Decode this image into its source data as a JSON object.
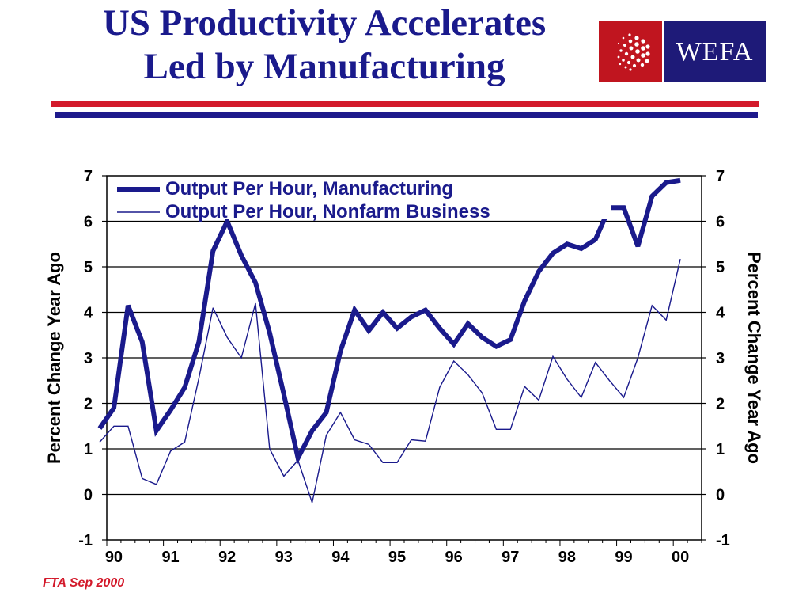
{
  "slide": {
    "title_line1": "US Productivity Accelerates",
    "title_line2": "Led by Manufacturing",
    "logo_text": "WEFA",
    "footnote": "FTA Sep 2000"
  },
  "colors": {
    "title": "#1a1a8c",
    "series": "#1a1a8c",
    "logo_red": "#c0151f",
    "logo_blue": "#1e1a78",
    "rule_red": "#d31a2b",
    "rule_blue": "#1e1a8c"
  },
  "chart_data": {
    "type": "line",
    "ylabel": "Percent Change Year Ago",
    "y2label": "Percent Change Year Ago",
    "ylim": [
      -1,
      7
    ],
    "yticks": [
      "-1",
      "0",
      "1",
      "2",
      "3",
      "4",
      "5",
      "6",
      "7"
    ],
    "xlim": [
      1990,
      2000.5
    ],
    "xticks": [
      "90",
      "91",
      "92",
      "93",
      "94",
      "95",
      "96",
      "97",
      "98",
      "99",
      "00"
    ],
    "grid": true,
    "legend_position": "top-left",
    "series": [
      {
        "name": "Output Per Hour, Manufacturing",
        "style": "thick",
        "x": [
          1989.875,
          1990.125,
          1990.375,
          1990.625,
          1990.875,
          1991.125,
          1991.375,
          1991.625,
          1991.875,
          1992.125,
          1992.375,
          1992.625,
          1992.875,
          1993.125,
          1993.375,
          1993.625,
          1993.875,
          1994.125,
          1994.375,
          1994.625,
          1994.875,
          1995.125,
          1995.375,
          1995.625,
          1995.875,
          1996.125,
          1996.375,
          1996.625,
          1996.875,
          1997.125,
          1997.375,
          1997.625,
          1997.875,
          1998.125,
          1998.375,
          1998.625,
          1998.875,
          1999.125,
          1999.375,
          1999.625,
          1999.875,
          2000.125
        ],
        "y": [
          1.45,
          1.9,
          4.15,
          3.35,
          1.4,
          1.85,
          2.35,
          3.35,
          5.35,
          6.0,
          5.25,
          4.65,
          3.55,
          2.2,
          0.8,
          1.4,
          1.8,
          3.15,
          4.05,
          3.6,
          4.0,
          3.65,
          3.9,
          4.05,
          3.65,
          3.3,
          3.75,
          3.45,
          3.25,
          3.4,
          4.25,
          4.9,
          5.3,
          5.5,
          5.4,
          5.6,
          6.3,
          6.3,
          5.45,
          6.55,
          6.85,
          6.9
        ]
      },
      {
        "name": "Output Per Hour, Nonfarm Business",
        "style": "thin",
        "x": [
          1989.875,
          1990.125,
          1990.375,
          1990.625,
          1990.875,
          1991.125,
          1991.375,
          1991.625,
          1991.875,
          1992.125,
          1992.375,
          1992.625,
          1992.875,
          1993.125,
          1993.375,
          1993.625,
          1993.875,
          1994.125,
          1994.375,
          1994.625,
          1994.875,
          1995.125,
          1995.375,
          1995.625,
          1995.875,
          1996.125,
          1996.375,
          1996.625,
          1996.875,
          1997.125,
          1997.375,
          1997.625,
          1997.875,
          1998.125,
          1998.375,
          1998.625,
          1998.875,
          1999.125,
          1999.375,
          1999.625,
          1999.875,
          2000.125
        ],
        "y": [
          1.15,
          1.5,
          1.5,
          0.35,
          0.22,
          0.95,
          1.15,
          2.55,
          4.1,
          3.45,
          3.0,
          4.2,
          1.0,
          0.4,
          0.75,
          -0.18,
          1.3,
          1.8,
          1.2,
          1.1,
          0.7,
          0.7,
          1.2,
          1.17,
          2.35,
          2.93,
          2.63,
          2.23,
          1.43,
          1.43,
          2.37,
          2.07,
          3.03,
          2.53,
          2.13,
          2.9,
          2.5,
          2.13,
          3.0,
          4.15,
          3.83,
          5.17
        ]
      }
    ]
  }
}
